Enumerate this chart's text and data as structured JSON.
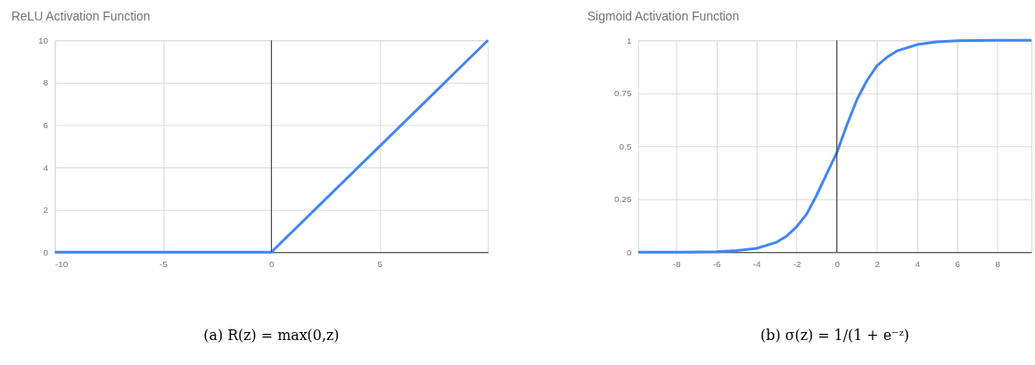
{
  "chart_data": [
    {
      "type": "line",
      "title": "ReLU Activation Function",
      "x": [
        -10,
        0,
        10
      ],
      "series": [
        {
          "color": "#4285f4",
          "values": [
            0,
            0,
            10
          ]
        }
      ],
      "xlim": [
        -10,
        10
      ],
      "xticks": [
        -10,
        -5,
        0,
        5
      ],
      "ylim": [
        0,
        10
      ],
      "yticks": [
        0,
        2,
        4,
        6,
        8,
        10
      ],
      "grid": true,
      "marker": "none",
      "line_style": "solid",
      "ref_lines": [
        {
          "axis": "x",
          "value": 0,
          "color": "#333333"
        }
      ],
      "annotations": [
        "(a) R(z) = max(0,z)"
      ]
    },
    {
      "type": "line",
      "title": "Sigmoid Activation Function",
      "x": [
        -9.9,
        -8,
        -7,
        -6,
        -5,
        -4,
        -3,
        -2.5,
        -2,
        -1.5,
        -1,
        -0.5,
        0,
        0.5,
        1,
        1.5,
        2,
        2.5,
        3,
        4,
        5,
        6,
        8,
        9.7
      ],
      "series": [
        {
          "color": "#4285f4",
          "values": [
            0,
            0,
            0.001,
            0.002,
            0.007,
            0.018,
            0.047,
            0.076,
            0.12,
            0.18,
            0.27,
            0.37,
            0.47,
            0.6,
            0.72,
            0.81,
            0.88,
            0.92,
            0.95,
            0.98,
            0.993,
            0.998,
            1,
            1
          ]
        }
      ],
      "xlim": [
        -9.9,
        9.7
      ],
      "xticks": [
        -8,
        -6,
        -4,
        -2,
        0,
        2,
        4,
        6,
        8
      ],
      "ylim": [
        0,
        1
      ],
      "yticks": [
        0,
        0.25,
        0.5,
        0.75,
        1
      ],
      "grid": true,
      "marker": "none",
      "line_style": "solid",
      "ref_lines": [
        {
          "axis": "x",
          "value": 0,
          "color": "#333333"
        }
      ],
      "annotations": [
        "(b) σ(z) = 1/(1 + e⁻ᶻ)"
      ]
    }
  ]
}
